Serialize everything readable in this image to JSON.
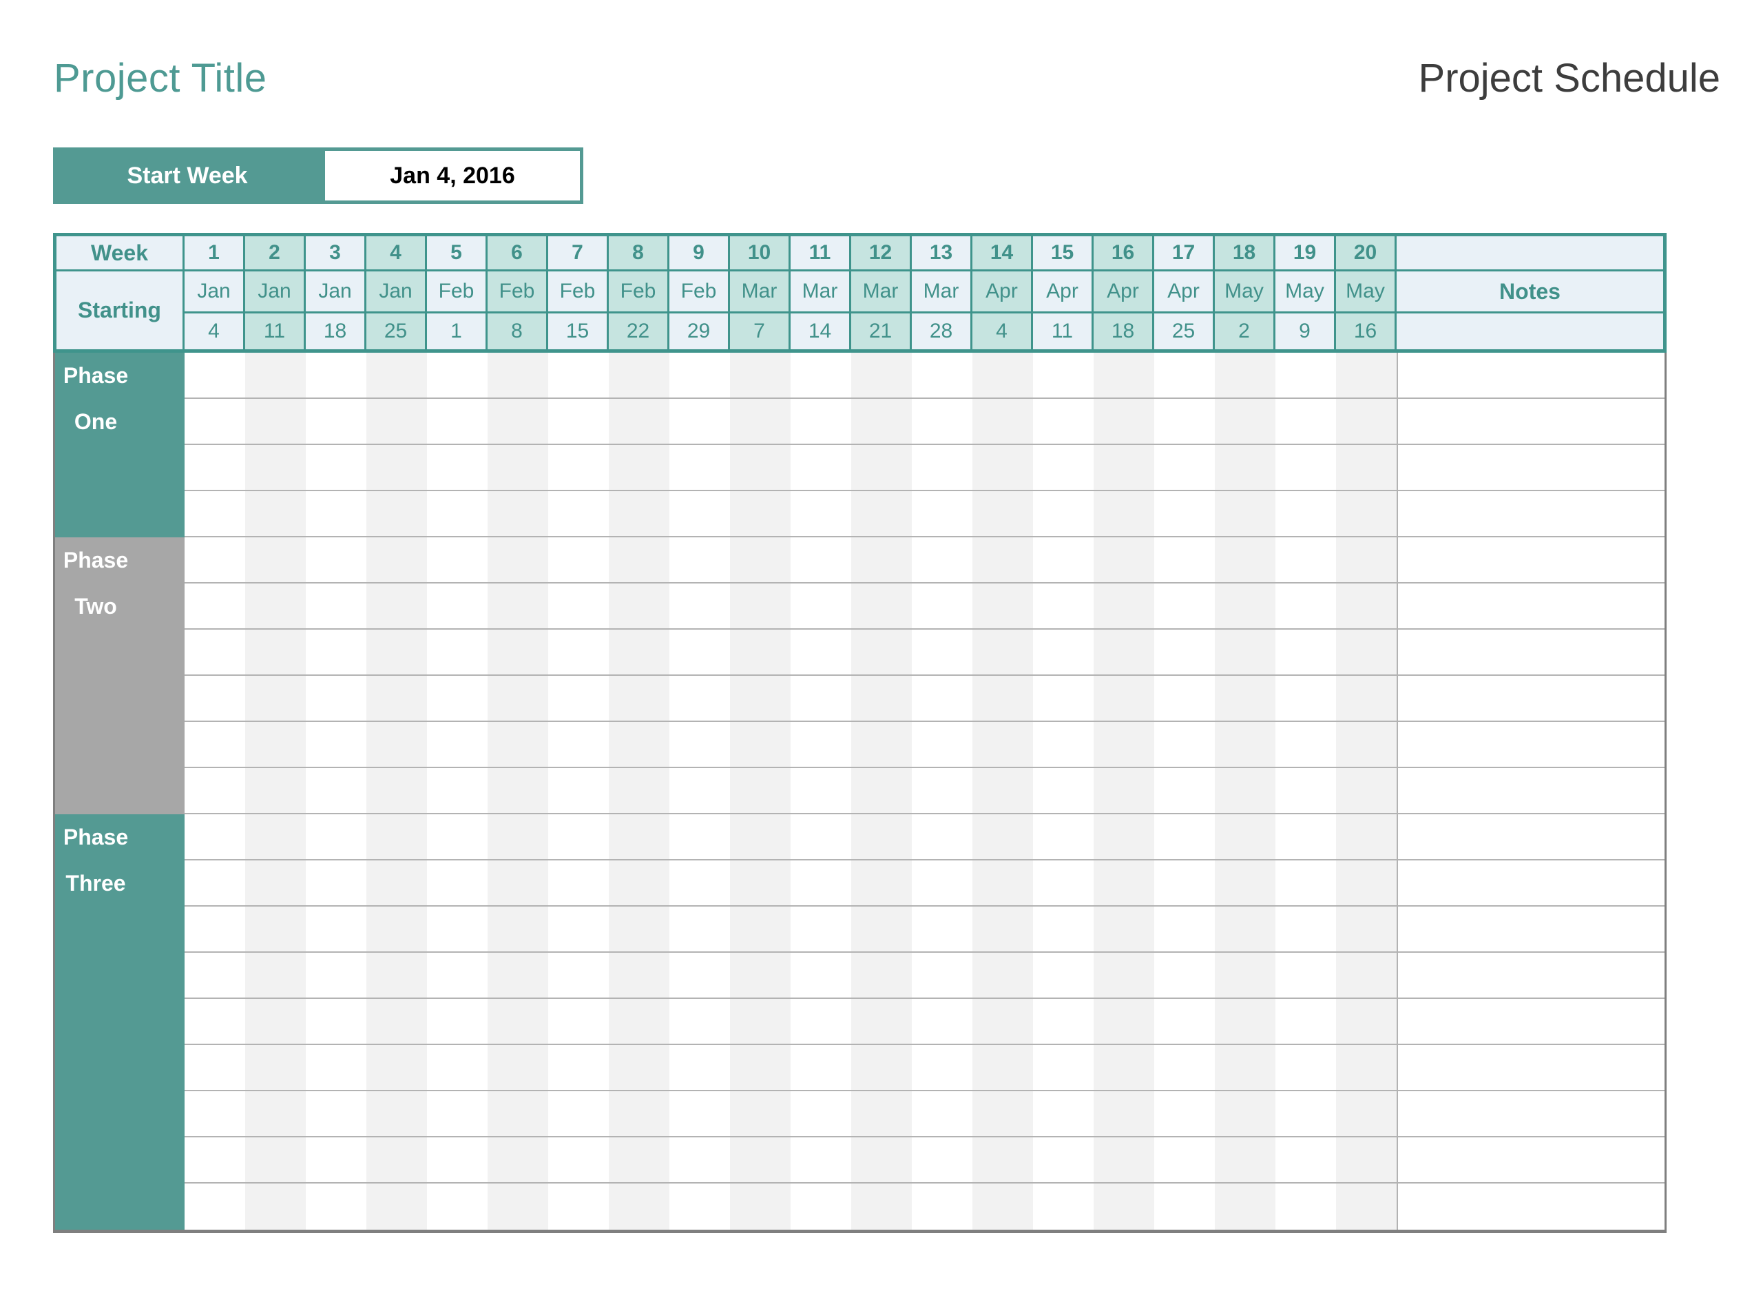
{
  "page": {
    "project_title": "Project Title",
    "document_title": "Project Schedule"
  },
  "start_week": {
    "label": "Start Week",
    "value": "Jan 4, 2016"
  },
  "schedule": {
    "header": {
      "week_label": "Week",
      "starting_label": "Starting",
      "notes_label": "Notes",
      "weeks": [
        {
          "number": "1",
          "month": "Jan",
          "day": "4"
        },
        {
          "number": "2",
          "month": "Jan",
          "day": "11"
        },
        {
          "number": "3",
          "month": "Jan",
          "day": "18"
        },
        {
          "number": "4",
          "month": "Jan",
          "day": "25"
        },
        {
          "number": "5",
          "month": "Feb",
          "day": "1"
        },
        {
          "number": "6",
          "month": "Feb",
          "day": "8"
        },
        {
          "number": "7",
          "month": "Feb",
          "day": "15"
        },
        {
          "number": "8",
          "month": "Feb",
          "day": "22"
        },
        {
          "number": "9",
          "month": "Feb",
          "day": "29"
        },
        {
          "number": "10",
          "month": "Mar",
          "day": "7"
        },
        {
          "number": "11",
          "month": "Mar",
          "day": "14"
        },
        {
          "number": "12",
          "month": "Mar",
          "day": "21"
        },
        {
          "number": "13",
          "month": "Mar",
          "day": "28"
        },
        {
          "number": "14",
          "month": "Apr",
          "day": "4"
        },
        {
          "number": "15",
          "month": "Apr",
          "day": "11"
        },
        {
          "number": "16",
          "month": "Apr",
          "day": "18"
        },
        {
          "number": "17",
          "month": "Apr",
          "day": "25"
        },
        {
          "number": "18",
          "month": "May",
          "day": "2"
        },
        {
          "number": "19",
          "month": "May",
          "day": "9"
        },
        {
          "number": "20",
          "month": "May",
          "day": "16"
        }
      ]
    },
    "phases": [
      {
        "name_line1": "Phase",
        "name_line2": "One",
        "rows": 4,
        "color": "teal"
      },
      {
        "name_line1": "Phase",
        "name_line2": "Two",
        "rows": 6,
        "color": "gray"
      },
      {
        "name_line1": "Phase",
        "name_line2": "Three",
        "rows": 9,
        "color": "teal"
      }
    ]
  },
  "colors": {
    "accent_teal": "#549a93",
    "teal_border": "#3f948c",
    "teal_text": "#41918a",
    "header_light_bg": "#e9f1f7",
    "header_teal_bg": "#c6e4e0",
    "phase_gray": "#a7a7a7",
    "stripe_gray": "#f2f2f2",
    "row_line": "#b3b3b3",
    "body_border": "#7f7f7f",
    "title_teal": "#4e9a93",
    "title_dark": "#3d3d3d"
  }
}
